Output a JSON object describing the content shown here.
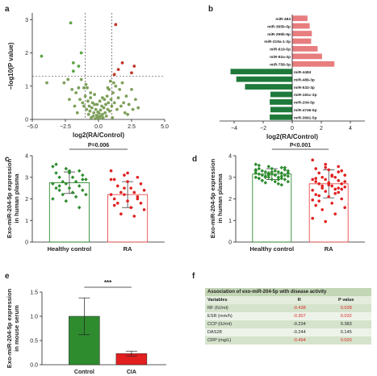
{
  "colors": {
    "green": "#1e7a3a",
    "red": "#e8545a",
    "light_red": "#e77d7f",
    "volcano_green": "#7ea05a",
    "dark_green": "#2e8b2e",
    "cia_red": "#e41f1f"
  },
  "panels": {
    "a": "a",
    "b": "b",
    "c": "c",
    "d": "d",
    "e": "e",
    "f": "f"
  },
  "chart_data": [
    {
      "panel": "a",
      "type": "scatter",
      "xlabel": "log2(RA/Control)",
      "ylabel": "−log10(P value)",
      "xlim": [
        -5,
        5
      ],
      "ylim": [
        0,
        3.2
      ],
      "xticks": [
        "−5.0",
        "−2.5",
        "0.0",
        "2.5",
        "5.0"
      ],
      "yticks": [
        "0",
        "1",
        "2",
        "3"
      ],
      "thresholds": {
        "x": [
          -1,
          1
        ],
        "y": 1.3
      },
      "series": [
        {
          "color": "#5aa646",
          "points": [
            [
              -4.3,
              1.9
            ],
            [
              -2.1,
              2.9
            ],
            [
              -1.9,
              1.7
            ],
            [
              -1.5,
              1.6
            ],
            [
              -1.3,
              2.0
            ],
            [
              -1.9,
              1.45
            ]
          ]
        },
        {
          "color": "#c0392b",
          "points": [
            [
              1.3,
              2.85
            ],
            [
              1.5,
              1.5
            ],
            [
              1.8,
              1.7
            ],
            [
              2.7,
              1.6
            ],
            [
              2.5,
              1.4
            ],
            [
              1.2,
              1.35
            ]
          ]
        },
        {
          "color": "#7ea05a",
          "points": [
            [
              -3.9,
              1.1
            ],
            [
              -2.6,
              1.1
            ],
            [
              -2.3,
              1.2
            ],
            [
              -2.0,
              0.9
            ],
            [
              -1.7,
              0.8
            ],
            [
              -1.5,
              0.95
            ],
            [
              -1.4,
              0.6
            ],
            [
              -1.3,
              1.2
            ],
            [
              -1.2,
              0.5
            ],
            [
              -1.1,
              0.4
            ],
            [
              -1.0,
              0.7
            ],
            [
              -0.9,
              0.3
            ],
            [
              -0.85,
              0.95
            ],
            [
              -0.8,
              0.55
            ],
            [
              -0.75,
              0.15
            ],
            [
              -0.7,
              0.4
            ],
            [
              -0.65,
              0.25
            ],
            [
              -0.6,
              0.8
            ],
            [
              -0.55,
              0.05
            ],
            [
              -0.5,
              0.35
            ],
            [
              -0.45,
              0.5
            ],
            [
              -0.4,
              0.1
            ],
            [
              -0.35,
              0.2
            ],
            [
              -0.3,
              0.45
            ],
            [
              -0.25,
              0.02
            ],
            [
              -0.2,
              0.3
            ],
            [
              -0.15,
              0.12
            ],
            [
              -0.1,
              0.05
            ],
            [
              -0.05,
              0.22
            ],
            [
              0.0,
              0.08
            ],
            [
              0.05,
              0.18
            ],
            [
              0.1,
              0.03
            ],
            [
              0.15,
              0.28
            ],
            [
              0.2,
              0.1
            ],
            [
              0.25,
              0.4
            ],
            [
              0.3,
              0.15
            ],
            [
              0.35,
              0.05
            ],
            [
              0.4,
              0.35
            ],
            [
              0.45,
              0.6
            ],
            [
              0.5,
              0.2
            ],
            [
              0.55,
              0.45
            ],
            [
              0.6,
              0.1
            ],
            [
              0.65,
              0.7
            ],
            [
              0.7,
              0.3
            ],
            [
              0.75,
              0.5
            ],
            [
              0.8,
              0.9
            ],
            [
              0.85,
              0.25
            ],
            [
              0.9,
              1.15
            ],
            [
              0.95,
              0.6
            ],
            [
              1.0,
              0.4
            ],
            [
              1.1,
              0.8
            ],
            [
              1.2,
              0.5
            ],
            [
              1.3,
              1.0
            ],
            [
              1.4,
              0.3
            ],
            [
              1.5,
              0.65
            ],
            [
              1.6,
              0.9
            ],
            [
              1.7,
              0.4
            ],
            [
              1.8,
              1.1
            ],
            [
              1.9,
              0.5
            ],
            [
              2.0,
              0.2
            ],
            [
              2.1,
              0.7
            ],
            [
              2.2,
              0.15
            ],
            [
              2.3,
              0.45
            ],
            [
              2.5,
              0.9
            ],
            [
              2.6,
              0.3
            ],
            [
              2.8,
              0.6
            ],
            [
              3.0,
              0.35
            ],
            [
              -1.8,
              0.4
            ],
            [
              -2.2,
              0.6
            ],
            [
              -1.6,
              0.2
            ],
            [
              -1.1,
              0.95
            ],
            [
              -0.95,
              1.05
            ],
            [
              1.15,
              1.1
            ],
            [
              1.05,
              0.05
            ],
            [
              0.7,
              0.95
            ],
            [
              -0.6,
              0.65
            ],
            [
              -0.3,
              0.75
            ],
            [
              0.3,
              0.65
            ],
            [
              0.1,
              0.55
            ],
            [
              -0.1,
              0.45
            ]
          ]
        }
      ]
    },
    {
      "panel": "b",
      "type": "bar",
      "orientation": "horizontal",
      "xlabel": "log2(RA/Control)",
      "xlim": [
        -5,
        5
      ],
      "xticks": [
        "−4",
        "−2",
        "0",
        "2",
        "4"
      ],
      "categories": [
        "miR-484",
        "miR-365b-5p",
        "miR-299b-5p",
        "miR-219a-1-3p",
        "miR-619-5p",
        "miR-92a-3p",
        "miR-758-3p",
        "miR-4484",
        "miR-489-3p",
        "miR-532-3p",
        "miR-181c-3p",
        "miR-204-5p",
        "miR-4746-5p",
        "miR-3691-5p"
      ],
      "values": [
        1.05,
        1.2,
        1.35,
        1.3,
        1.75,
        2.05,
        2.9,
        -4.25,
        -3.85,
        -3.25,
        -1.5,
        -1.55,
        -1.5,
        -1.55
      ]
    },
    {
      "panel": "c",
      "type": "bar",
      "ylabel": "Exo-miR-204-5p expression in human plasma",
      "categories": [
        "Healthy control",
        "RA"
      ],
      "values": [
        2.75,
        2.2
      ],
      "errors": [
        0.5,
        0.6
      ],
      "ylim": [
        0,
        4
      ],
      "yticks": [
        "0",
        "1",
        "2",
        "3",
        "4"
      ],
      "significance": "P=0.006",
      "points": [
        [
          3.5,
          3.4,
          3.3,
          3.2,
          3.2,
          3.1,
          3.0,
          3.0,
          2.9,
          2.8,
          2.8,
          2.7,
          2.7,
          2.6,
          2.5,
          2.5,
          2.4,
          2.4,
          2.3,
          2.2,
          2.2,
          2.1,
          2.0,
          1.9,
          1.6,
          3.6,
          3.3,
          2.9,
          2.6
        ],
        [
          3.3,
          3.1,
          3.0,
          2.9,
          2.8,
          2.7,
          2.6,
          2.5,
          2.4,
          2.3,
          2.3,
          2.2,
          2.2,
          2.1,
          2.0,
          1.9,
          1.8,
          1.8,
          1.6,
          1.5,
          1.3,
          1.2,
          2.9,
          2.5,
          2.0,
          1.7,
          3.2
        ]
      ]
    },
    {
      "panel": "d",
      "type": "bar",
      "ylabel": "Exo-miR-204-5p expression in human plasma",
      "categories": [
        "Healthy control",
        "RA"
      ],
      "values": [
        3.15,
        2.7
      ],
      "errors": [
        0.25,
        0.65
      ],
      "ylim": [
        0,
        4
      ],
      "yticks": [
        "0",
        "1",
        "2",
        "3",
        "4"
      ],
      "significance": "P<0.001",
      "points": [
        [
          3.6,
          3.5,
          3.45,
          3.4,
          3.4,
          3.35,
          3.3,
          3.3,
          3.3,
          3.25,
          3.25,
          3.2,
          3.2,
          3.2,
          3.15,
          3.15,
          3.1,
          3.1,
          3.1,
          3.05,
          3.05,
          3.0,
          3.0,
          3.0,
          2.95,
          2.95,
          2.9,
          2.9,
          2.85,
          2.8,
          2.8,
          2.75,
          2.7,
          3.35,
          3.15,
          3.05,
          2.95,
          3.25,
          3.45,
          2.85,
          3.1,
          3.2,
          3.0,
          2.9,
          3.3,
          3.1,
          2.65,
          3.55
        ],
        [
          3.8,
          3.6,
          3.5,
          3.4,
          3.35,
          3.3,
          3.2,
          3.1,
          3.1,
          3.0,
          3.0,
          2.9,
          2.9,
          2.85,
          2.8,
          2.75,
          2.7,
          2.7,
          2.6,
          2.55,
          2.5,
          2.45,
          2.4,
          2.35,
          2.3,
          2.2,
          2.1,
          2.0,
          1.9,
          1.8,
          1.6,
          1.5,
          1.3,
          1.1,
          0.95,
          3.25,
          2.95,
          2.65,
          2.45,
          2.15,
          3.05,
          2.8,
          2.6,
          2.25,
          1.95,
          3.45,
          2.5,
          1.7
        ]
      ]
    },
    {
      "panel": "e",
      "type": "bar",
      "ylabel": "Exo-miR-204-5p expression in mouse serum",
      "categories": [
        "Control",
        "CIA"
      ],
      "values": [
        1.0,
        0.23
      ],
      "errors": [
        0.38,
        0.05
      ],
      "ylim": [
        0,
        1.5
      ],
      "yticks": [
        "0.0",
        "0.5",
        "1.0",
        "1.5"
      ],
      "significance": "***"
    },
    {
      "panel": "f",
      "type": "table",
      "title": "Association of exo-miR-204-5p with disease activity",
      "columns": [
        "Variables",
        "R",
        "P value"
      ],
      "rows": [
        {
          "var": "RF (IU/ml)",
          "r": "-0.438",
          "p": "0.028",
          "sig": true
        },
        {
          "var": "ESR (mm/h)",
          "r": "-0.307",
          "p": "0.032",
          "sig": true
        },
        {
          "var": "CCP (IU/ml)",
          "r": "-0.234",
          "p": "0.383",
          "sig": false
        },
        {
          "var": "DAS28",
          "r": "-0.244",
          "p": "0.145",
          "sig": false
        },
        {
          "var": "CRP (mg/L)",
          "r": "-0.494",
          "p": "0.020",
          "sig": true
        }
      ]
    }
  ]
}
